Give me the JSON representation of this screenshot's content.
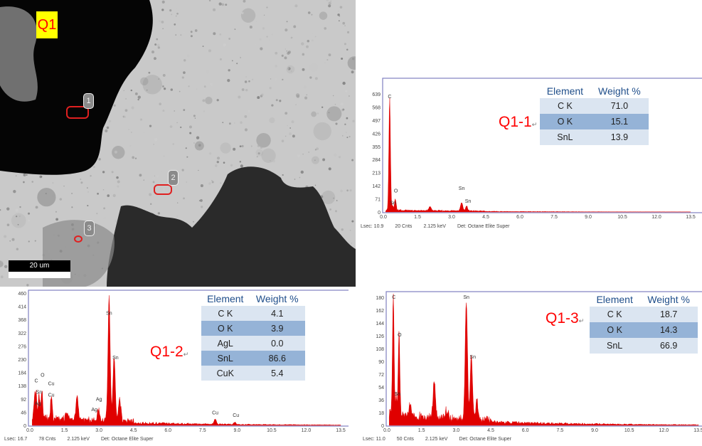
{
  "sem_image": {
    "label": "Q1",
    "markers": [
      "1",
      "2",
      "3"
    ],
    "scale_bar": "20 um"
  },
  "spectra": [
    {
      "label": "Q1-1",
      "table": {
        "headers": [
          "Element",
          "Weight %"
        ],
        "rows": [
          [
            "C K",
            "71.0"
          ],
          [
            "O K",
            "15.1"
          ],
          [
            "SnL",
            "13.9"
          ]
        ]
      },
      "footer": {
        "lsec": "Lsec: 10.9",
        "cnts": "20 Cnts",
        "kev": "2.125 keV",
        "det": "Det: Octane Elite Super"
      }
    },
    {
      "label": "Q1-2",
      "table": {
        "headers": [
          "Element",
          "Weight %"
        ],
        "rows": [
          [
            "C K",
            "4.1"
          ],
          [
            "O K",
            "3.9"
          ],
          [
            "AgL",
            "0.0"
          ],
          [
            "SnL",
            "86.6"
          ],
          [
            "CuK",
            "5.4"
          ]
        ]
      },
      "footer": {
        "lsec": "Lsec: 16.7",
        "cnts": "78 Cnts",
        "kev": "2.125 keV",
        "det": "Det: Octane Elite Super"
      }
    },
    {
      "label": "Q1-3",
      "table": {
        "headers": [
          "Element",
          "Weight %"
        ],
        "rows": [
          [
            "C K",
            "18.7"
          ],
          [
            "O K",
            "14.3"
          ],
          [
            "SnL",
            "66.9"
          ]
        ]
      },
      "footer": {
        "lsec": "Lsec: 11.0",
        "cnts": "50 Cnts",
        "kev": "2.125 keV",
        "det": "Det: Octane Elite Super"
      }
    }
  ],
  "colors": {
    "spectrum_fill": "#e00000",
    "frame": "#8080c0",
    "label_red": "#ff0000",
    "table_light": "#dbe5f1",
    "table_dark": "#95b3d7",
    "highlight_yellow": "#ffff00"
  },
  "chart_data": [
    {
      "type": "area",
      "xlim": [
        0,
        13.5
      ],
      "ylim": [
        0,
        639
      ],
      "x_ticks": [
        "0.0",
        "1.5",
        "3.0",
        "4.5",
        "6.0",
        "7.5",
        "9.0",
        "10.5",
        "12.0",
        "13.5"
      ],
      "y_ticks": [
        "0",
        "71",
        "142",
        "213",
        "284",
        "355",
        "426",
        "497",
        "568",
        "639"
      ],
      "peaks": [
        [
          0.277,
          610
        ],
        [
          0.525,
          60
        ],
        [
          0.4,
          25
        ],
        [
          2.05,
          22
        ],
        [
          3.44,
          45
        ],
        [
          3.66,
          25
        ]
      ],
      "background": 8,
      "peak_labels": [
        {
          "text": "C",
          "x": 0.277,
          "y": 615
        },
        {
          "text": "O",
          "x": 0.55,
          "y": 105
        },
        {
          "text": "Sn",
          "x": 0.42,
          "y": 40
        },
        {
          "text": "Sn",
          "x": 3.44,
          "y": 120
        },
        {
          "text": "Sn",
          "x": 3.72,
          "y": 50
        }
      ]
    },
    {
      "type": "area",
      "xlim": [
        0,
        13.5
      ],
      "ylim": [
        0,
        460
      ],
      "x_ticks": [
        "0.0",
        "1.5",
        "3.0",
        "4.5",
        "6.0",
        "7.5",
        "9.0",
        "10.5",
        "12.0",
        "13.5"
      ],
      "y_ticks": [
        "0",
        "46",
        "92",
        "138",
        "184",
        "230",
        "276",
        "322",
        "368",
        "414",
        "460"
      ],
      "peaks": [
        [
          0.2,
          70
        ],
        [
          0.277,
          85
        ],
        [
          0.4,
          80
        ],
        [
          0.525,
          90
        ],
        [
          0.93,
          80
        ],
        [
          1.6,
          20
        ],
        [
          2.05,
          85
        ],
        [
          2.98,
          35
        ],
        [
          3.44,
          430
        ],
        [
          3.66,
          225
        ],
        [
          3.9,
          80
        ],
        [
          8.05,
          18
        ],
        [
          8.9,
          8
        ]
      ],
      "background": 22,
      "peak_labels": [
        {
          "text": "C",
          "x": 0.28,
          "y": 150
        },
        {
          "text": "O",
          "x": 0.55,
          "y": 170
        },
        {
          "text": "Sn",
          "x": 0.4,
          "y": 110
        },
        {
          "text": "Ag",
          "x": 0.35,
          "y": 70
        },
        {
          "text": "Cu",
          "x": 0.93,
          "y": 140
        },
        {
          "text": "Cu",
          "x": 0.93,
          "y": 100
        },
        {
          "text": "Ag",
          "x": 3.0,
          "y": 85
        },
        {
          "text": "Ag",
          "x": 2.8,
          "y": 50
        },
        {
          "text": "Sn",
          "x": 3.44,
          "y": 385
        },
        {
          "text": "Sn",
          "x": 3.72,
          "y": 230
        },
        {
          "text": "Cu",
          "x": 8.05,
          "y": 38
        },
        {
          "text": "Cu",
          "x": 8.95,
          "y": 30
        }
      ]
    },
    {
      "type": "area",
      "xlim": [
        0,
        13.5
      ],
      "ylim": [
        0,
        180
      ],
      "x_ticks": [
        "0.0",
        "1.5",
        "3.0",
        "4.5",
        "6.0",
        "7.5",
        "9.0",
        "10.5",
        "12.0",
        "13.5"
      ],
      "y_ticks": [
        "0",
        "18",
        "36",
        "54",
        "72",
        "90",
        "108",
        "126",
        "144",
        "162",
        "180"
      ],
      "peaks": [
        [
          0.277,
          170
        ],
        [
          0.4,
          25
        ],
        [
          0.525,
          118
        ],
        [
          1.0,
          15
        ],
        [
          2.05,
          52
        ],
        [
          2.6,
          12
        ],
        [
          3.44,
          168
        ],
        [
          3.66,
          88
        ],
        [
          3.9,
          28
        ]
      ],
      "background": 12,
      "peak_labels": [
        {
          "text": "C",
          "x": 0.3,
          "y": 178
        },
        {
          "text": "O",
          "x": 0.55,
          "y": 125
        },
        {
          "text": "Sn",
          "x": 0.45,
          "y": 42
        },
        {
          "text": "Sn",
          "x": 3.44,
          "y": 178
        },
        {
          "text": "Sn",
          "x": 3.72,
          "y": 94
        }
      ]
    }
  ]
}
